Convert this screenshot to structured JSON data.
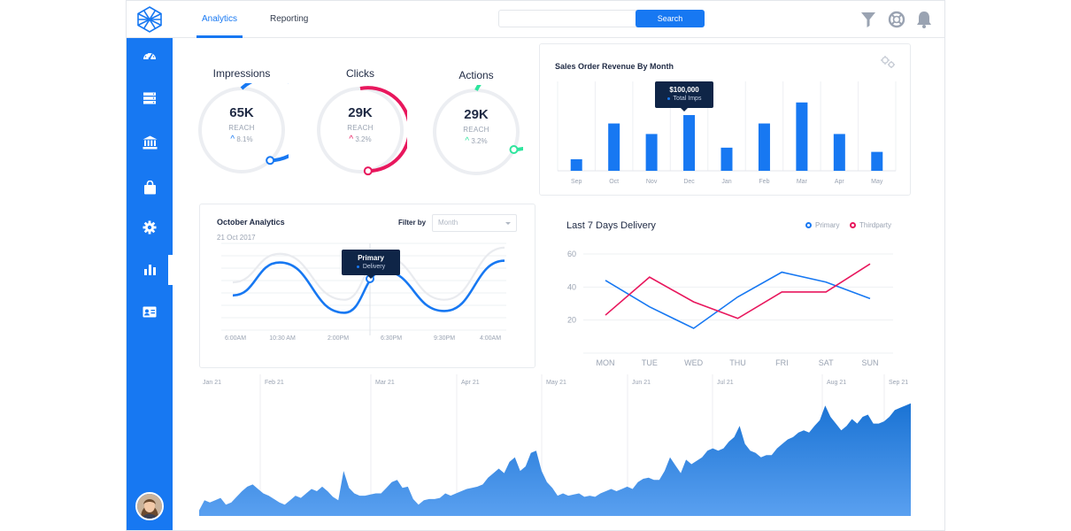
{
  "header": {
    "tabs": [
      {
        "label": "Analytics",
        "active": true
      },
      {
        "label": "Reporting",
        "active": false
      }
    ],
    "search": {
      "placeholder": "",
      "button_label": "Search"
    },
    "icons": [
      "filter-icon",
      "lifebuoy-icon",
      "bell-icon"
    ]
  },
  "sidebar": {
    "items": [
      {
        "icon": "dashboard-icon"
      },
      {
        "icon": "server-icon"
      },
      {
        "icon": "bank-icon"
      },
      {
        "icon": "shopping-bag-icon"
      },
      {
        "icon": "gear-icon"
      },
      {
        "icon": "bar-chart-icon",
        "active": true
      },
      {
        "icon": "id-card-icon"
      }
    ]
  },
  "kpis": [
    {
      "title": "Impressions",
      "value": "65K",
      "reach_label": "REACH",
      "delta": "8.1%",
      "color": "#1778f2",
      "progress": 0.62
    },
    {
      "title": "Clicks",
      "value": "29K",
      "reach_label": "REACH",
      "delta": "3.2%",
      "color": "#e8175d",
      "progress": 0.53
    },
    {
      "title": "Actions",
      "value": "29K",
      "reach_label": "REACH",
      "delta": "3.2%",
      "color": "#2ee59d",
      "progress": 0.68
    }
  ],
  "revenue": {
    "title": "Sales Order Revenue By Month",
    "tooltip": {
      "value": "$100,000",
      "label": "Total Imps"
    },
    "chart_data": {
      "type": "bar",
      "categories": [
        "Sep",
        "Oct",
        "Nov",
        "Dec",
        "Jan",
        "Feb",
        "Mar",
        "Apr",
        "May"
      ],
      "values": [
        11,
        45,
        35,
        53,
        22,
        45,
        65,
        35,
        18
      ],
      "ylim": [
        0,
        85
      ],
      "color": "#1778f2"
    }
  },
  "october": {
    "title": "October Analytics",
    "date": "21 Oct 2017",
    "filter_label": "Filter by",
    "filter_value": "Month",
    "tooltip": {
      "title": "Primary",
      "label": "Delivery"
    },
    "chart_data": {
      "type": "line",
      "categories": [
        "6:00AM",
        "10:30 AM",
        "2:00PM",
        "6:30PM",
        "9:30PM",
        "4:00AM"
      ],
      "series": [
        {
          "values": [
            40,
            78,
            20,
            68,
            22,
            80
          ],
          "color": "#1778f2"
        },
        {
          "values": [
            55,
            88,
            35,
            85,
            35,
            95
          ],
          "color": "#e9ebef"
        }
      ],
      "ylim": [
        0,
        100
      ]
    }
  },
  "delivery": {
    "title": "Last 7 Days Delivery",
    "legend": [
      {
        "name": "Primary",
        "color": "#1778f2"
      },
      {
        "name": "Thirdparty",
        "color": "#e8175d"
      }
    ],
    "chart_data": {
      "type": "line",
      "categories": [
        "MON",
        "TUE",
        "WED",
        "THU",
        "FRI",
        "SAT",
        "SUN"
      ],
      "yticks": [
        20,
        40,
        60
      ],
      "ylim": [
        0,
        70
      ],
      "series": [
        {
          "name": "Primary",
          "values": [
            44,
            28,
            15,
            34,
            49,
            43,
            33
          ],
          "color": "#1778f2"
        },
        {
          "name": "Thirdparty",
          "values": [
            23,
            46,
            31,
            21,
            37,
            37,
            54
          ],
          "color": "#e8175d"
        }
      ]
    }
  },
  "area": {
    "chart_data": {
      "type": "area",
      "x_labels": [
        "Jan 21",
        "Feb 21",
        "Mar 21",
        "Apr 21",
        "May 21",
        "Jun 21",
        "Jul 21",
        "Aug 21",
        "Sep 21"
      ],
      "values": [
        5,
        14,
        12,
        14,
        16,
        10,
        12,
        17,
        22,
        26,
        28,
        24,
        20,
        18,
        15,
        12,
        10,
        14,
        18,
        16,
        20,
        24,
        22,
        26,
        22,
        17,
        14,
        40,
        25,
        20,
        18,
        18,
        19,
        20,
        20,
        25,
        30,
        32,
        25,
        26,
        15,
        10,
        14,
        15,
        15,
        16,
        20,
        18,
        20,
        22,
        24,
        25,
        26,
        28,
        34,
        38,
        42,
        38,
        48,
        52,
        40,
        44,
        56,
        58,
        40,
        30,
        25,
        18,
        20,
        18,
        19,
        20,
        17,
        18,
        17,
        20,
        22,
        24,
        22,
        24,
        26,
        24,
        30,
        33,
        34,
        32,
        32,
        40,
        52,
        45,
        38,
        50,
        46,
        49,
        52,
        58,
        60,
        58,
        60,
        66,
        70,
        80,
        64,
        58,
        56,
        52,
        54,
        54,
        60,
        64,
        68,
        70,
        74,
        76,
        74,
        80,
        85,
        98,
        88,
        82,
        76,
        80,
        86,
        82,
        88,
        90,
        82,
        82,
        84,
        88,
        94,
        96,
        98,
        100
      ],
      "ylim": [
        0,
        110
      ],
      "color": "#1a73d4"
    }
  }
}
